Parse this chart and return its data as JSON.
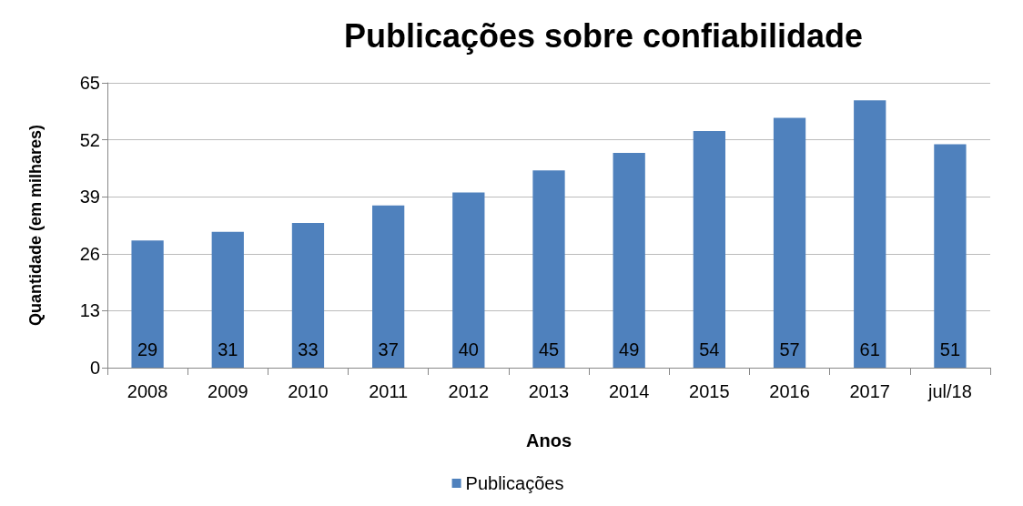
{
  "chart_data": {
    "type": "bar",
    "title": "Publicações sobre confiabilidade",
    "xlabel": "Anos",
    "ylabel": "Quantidade (em milhares)",
    "categories": [
      "2008",
      "2009",
      "2010",
      "2011",
      "2012",
      "2013",
      "2014",
      "2015",
      "2016",
      "2017",
      "jul/18"
    ],
    "series": [
      {
        "name": "Publicações",
        "color": "#4f81bd",
        "values": [
          29,
          31,
          33,
          37,
          40,
          45,
          49,
          54,
          57,
          61,
          51
        ]
      }
    ],
    "ylim": [
      0,
      65
    ],
    "yticks": [
      0,
      13,
      26,
      39,
      52,
      65
    ],
    "grid": "y",
    "legend": "bottom",
    "data_labels": true
  }
}
